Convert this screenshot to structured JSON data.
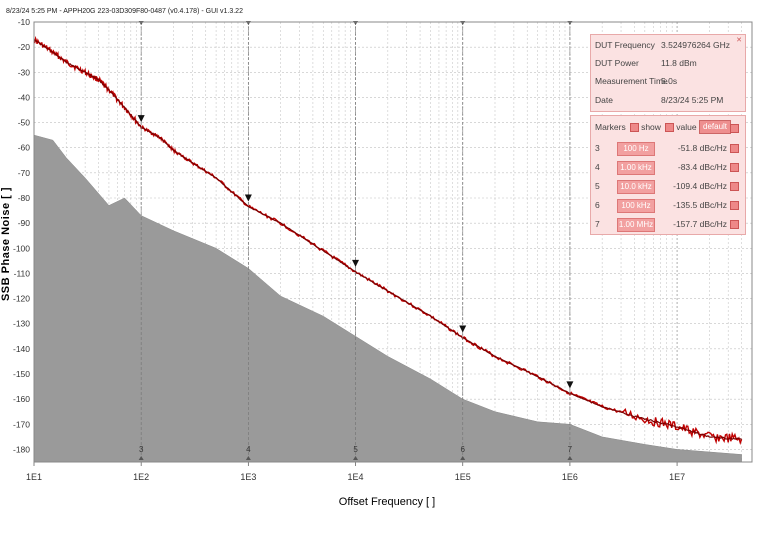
{
  "header": "8/23/24 5:25 PM - APPH20G 223-03D309F80-0487 (v0.4.178) - GUI v1.3.22",
  "info_panel": {
    "rows": [
      {
        "label": "DUT Frequency",
        "value": "3.524976264 GHz"
      },
      {
        "label": "DUT Power",
        "value": "11.8 dBm"
      },
      {
        "label": "Measurement Time",
        "value": "5.0s"
      },
      {
        "label": "Date",
        "value": "8/23/24 5:25 PM"
      }
    ]
  },
  "markers_panel": {
    "title": "Markers",
    "show_label": "show",
    "value_label": "value",
    "default_label": "default",
    "rows": [
      {
        "num": "3",
        "freq": "100 Hz",
        "value": "-51.8 dBc/Hz"
      },
      {
        "num": "4",
        "freq": "1.00 kHz",
        "value": "-83.4 dBc/Hz"
      },
      {
        "num": "5",
        "freq": "10.0 kHz",
        "value": "-109.4 dBc/Hz"
      },
      {
        "num": "6",
        "freq": "100 kHz",
        "value": "-135.5 dBc/Hz"
      },
      {
        "num": "7",
        "freq": "1.00 MHz",
        "value": "-157.7 dBc/Hz"
      }
    ]
  },
  "chart_data": {
    "type": "line",
    "xlabel": "Offset Frequency [ ]",
    "ylabel": "SSB Phase Noise [ ]",
    "xscale": "log",
    "xlim": [
      10,
      50000000
    ],
    "ylim": [
      -185,
      -10
    ],
    "x_ticks": [
      "1E1",
      "1E2",
      "1E3",
      "1E4",
      "1E5",
      "1E6",
      "1E7"
    ],
    "y_ticks": [
      -10,
      -20,
      -30,
      -40,
      -50,
      -60,
      -70,
      -80,
      -90,
      -100,
      -110,
      -120,
      -130,
      -140,
      -150,
      -160,
      -170,
      -180
    ],
    "grid": true,
    "trace_color": "#c00000",
    "trace_dark": "#7a0000",
    "floor_color": "#9a9a9a",
    "series": [
      {
        "x": [
          10,
          15,
          20,
          30,
          40,
          50,
          70,
          100,
          150,
          200,
          300,
          500,
          1000,
          2000,
          5000,
          10000,
          20000,
          50000,
          100000,
          200000,
          500000,
          1000000,
          2000000,
          5000000,
          10000000,
          20000000,
          40000000
        ],
        "y": [
          -17,
          -22,
          -26,
          -30,
          -33,
          -37,
          -44,
          -51.8,
          -56,
          -61,
          -66,
          -72,
          -83.4,
          -90,
          -101,
          -109.4,
          -117,
          -127,
          -135.5,
          -143,
          -151,
          -157.7,
          -163,
          -168,
          -171,
          -175,
          -176
        ]
      },
      {
        "x": [
          10,
          15,
          20,
          30,
          50,
          70,
          100,
          200,
          500,
          1000,
          2000,
          5000,
          10000,
          20000,
          50000,
          100000,
          200000,
          500000,
          1000000,
          2000000,
          5000000,
          10000000,
          40000000
        ],
        "y": [
          -55,
          -57,
          -64,
          -72,
          -83,
          -80,
          -87,
          -93,
          -100,
          -108,
          -119,
          -127,
          -135,
          -143,
          -152,
          -160,
          -165,
          -169,
          -170,
          -175,
          -178,
          -180,
          -182
        ]
      }
    ],
    "marker_points": [
      {
        "id": "3",
        "x": 100,
        "y": -51.8
      },
      {
        "id": "4",
        "x": 1000,
        "y": -83.4
      },
      {
        "id": "5",
        "x": 10000,
        "y": -109.4
      },
      {
        "id": "6",
        "x": 100000,
        "y": -135.5
      },
      {
        "id": "7",
        "x": 1000000,
        "y": -157.7
      }
    ]
  }
}
